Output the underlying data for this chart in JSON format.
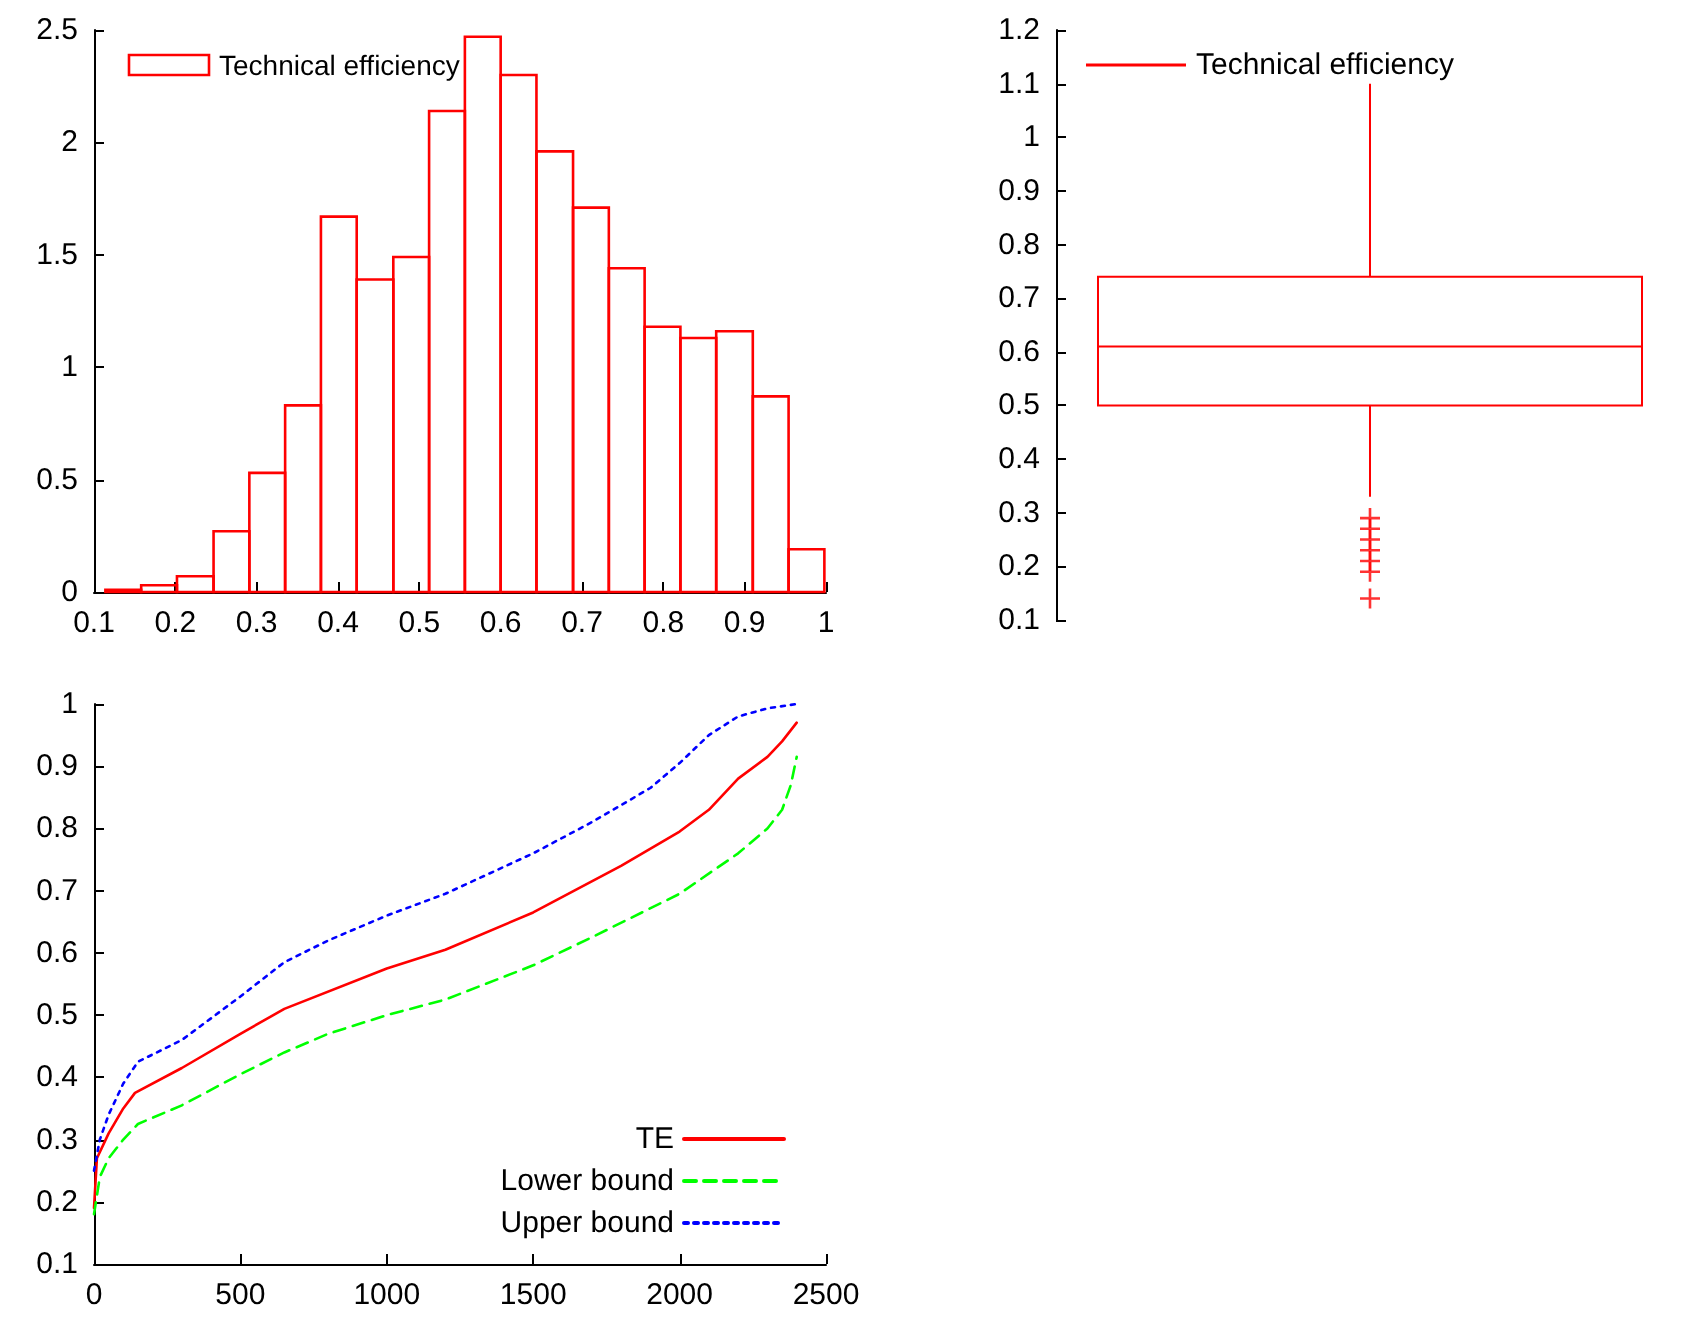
{
  "chart_data": [
    {
      "type": "histogram",
      "bins": [
        0.114,
        0.158,
        0.202,
        0.247,
        0.291,
        0.335,
        0.379,
        0.423,
        0.468,
        0.512,
        0.556,
        0.6,
        0.644,
        0.689,
        0.733,
        0.777,
        0.821,
        0.865,
        0.91,
        0.954,
        0.998
      ],
      "series": [
        {
          "name": "Technical efficiency",
          "color": "#ff0000",
          "values": [
            0.01,
            0.03,
            0.07,
            0.27,
            0.53,
            0.83,
            1.67,
            1.39,
            1.49,
            2.14,
            2.47,
            2.3,
            1.96,
            1.71,
            1.44,
            1.18,
            1.13,
            1.16,
            0.87,
            0.19
          ]
        }
      ],
      "xlim": [
        0.1,
        1
      ],
      "xticks": [
        0.1,
        0.2,
        0.3,
        0.4,
        0.5,
        0.6,
        0.7,
        0.8,
        0.9,
        1
      ],
      "ylim": [
        0,
        2.5
      ],
      "yticks": [
        0,
        0.5,
        1,
        1.5,
        2,
        2.5
      ],
      "legend": "top left",
      "grid": false
    },
    {
      "type": "box",
      "categories": [
        null
      ],
      "series": [
        {
          "name": "Technical efficiency",
          "color": "#ff0000",
          "boxes": [
            {
              "low": 0.33,
              "q1": 0.5,
              "median": 0.61,
              "q3": 0.74,
              "high": 1.1,
              "outliers": [
                0.14,
                0.19,
                0.21,
                0.23,
                0.25,
                0.27,
                0.29
              ]
            }
          ]
        }
      ],
      "ylim": [
        0.1,
        1.2
      ],
      "yticks": [
        0.1,
        0.2,
        0.3,
        0.4,
        0.5,
        0.6,
        0.7,
        0.8,
        0.9,
        1,
        1.1,
        1.2
      ],
      "tick_labels": "y",
      "legend": "top left",
      "grid": false,
      "marker": "cross"
    },
    {
      "type": "line",
      "marker": "none",
      "grid": false,
      "legend": "bottom right",
      "series": [
        {
          "name": "TE",
          "color": "#ff0000",
          "line_style": "solid",
          "x": [
            0,
            10,
            50,
            100,
            140,
            300,
            500,
            650,
            1000,
            1200,
            1500,
            1800,
            2000,
            2100,
            2200,
            2300,
            2350,
            2400
          ],
          "values": [
            0.19,
            0.27,
            0.31,
            0.35,
            0.375,
            0.415,
            0.47,
            0.51,
            0.575,
            0.605,
            0.665,
            0.74,
            0.795,
            0.83,
            0.88,
            0.915,
            0.94,
            0.97
          ]
        },
        {
          "name": "Lower bound",
          "color": "#00ff00",
          "line_style": "dashed",
          "x": [
            0,
            20,
            50,
            100,
            150,
            300,
            500,
            650,
            800,
            1000,
            1200,
            1500,
            1700,
            2000,
            2200,
            2300,
            2350,
            2380,
            2400
          ],
          "values": [
            0.18,
            0.24,
            0.27,
            0.3,
            0.325,
            0.355,
            0.405,
            0.44,
            0.47,
            0.5,
            0.525,
            0.58,
            0.625,
            0.695,
            0.76,
            0.8,
            0.83,
            0.87,
            0.915
          ]
        },
        {
          "name": "Upper bound",
          "color": "#0000ff",
          "line_style": "dotted",
          "x": [
            0,
            20,
            50,
            100,
            150,
            300,
            500,
            650,
            800,
            1000,
            1200,
            1500,
            1700,
            1900,
            2000,
            2100,
            2200,
            2300,
            2400
          ],
          "values": [
            0.25,
            0.3,
            0.34,
            0.39,
            0.425,
            0.46,
            0.53,
            0.585,
            0.62,
            0.66,
            0.695,
            0.76,
            0.81,
            0.865,
            0.905,
            0.95,
            0.98,
            0.993,
            1.0
          ]
        }
      ],
      "xlim": [
        0,
        2500
      ],
      "xticks": [
        0,
        500,
        1000,
        1500,
        2000,
        2500
      ],
      "ylim": [
        0.1,
        1
      ],
      "yticks": [
        0.1,
        0.2,
        0.3,
        0.4,
        0.5,
        0.6,
        0.7,
        0.8,
        0.9,
        1
      ]
    }
  ]
}
